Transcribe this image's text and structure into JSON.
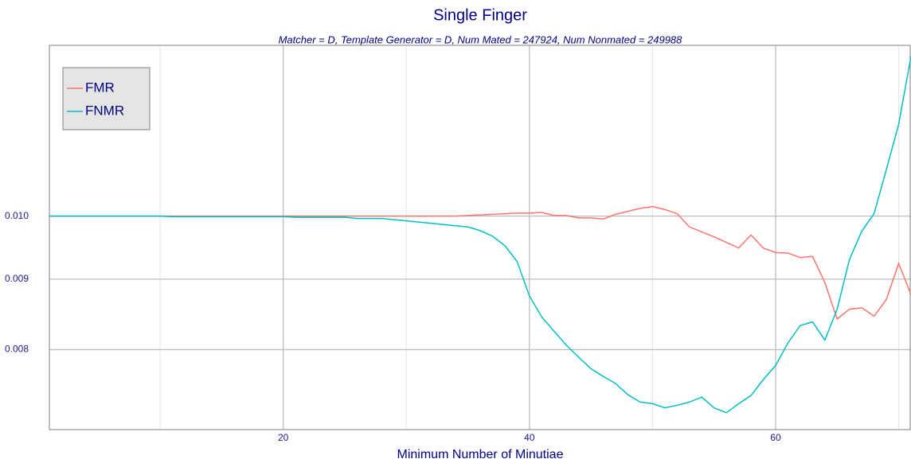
{
  "chart_data": {
    "type": "line",
    "title": "Single Finger",
    "subtitle": "Matcher = D,   Template Generator = D,   Num Mated = 247924,   Num Nonmated = 249988",
    "xlabel": "Minimum Number of Minutiae",
    "x": [
      1,
      2,
      3,
      4,
      5,
      6,
      7,
      8,
      9,
      10,
      11,
      12,
      13,
      14,
      15,
      16,
      17,
      18,
      19,
      20,
      21,
      22,
      23,
      24,
      25,
      26,
      27,
      28,
      29,
      30,
      31,
      32,
      33,
      34,
      35,
      36,
      37,
      38,
      39,
      40,
      41,
      42,
      43,
      44,
      45,
      46,
      47,
      48,
      49,
      50,
      51,
      52,
      53,
      54,
      55,
      56,
      57,
      58,
      59,
      60,
      61,
      62,
      63,
      64,
      65,
      66,
      67,
      68,
      69,
      70,
      71
    ],
    "series": [
      {
        "name": "FMR",
        "color": "#F8766D",
        "values": [
          0.01,
          0.01,
          0.01,
          0.01,
          0.01,
          0.01,
          0.01,
          0.01,
          0.01,
          0.01,
          0.01,
          0.01,
          0.01,
          0.01,
          0.01,
          0.01,
          0.01,
          0.01,
          0.01,
          0.01,
          0.01,
          0.01,
          0.01,
          0.01,
          0.01,
          0.01,
          0.01,
          0.01,
          0.01,
          0.01,
          0.01,
          0.01,
          0.01,
          0.01,
          0.01001,
          0.01002,
          0.01003,
          0.01004,
          0.01005,
          0.01005,
          0.01006,
          0.01001,
          0.01001,
          0.00997,
          0.00997,
          0.00995,
          0.01003,
          0.01008,
          0.01013,
          0.01016,
          0.01011,
          0.01004,
          0.00982,
          0.00974,
          0.00966,
          0.00957,
          0.00948,
          0.00969,
          0.00948,
          0.00941,
          0.0094,
          0.00933,
          0.00935,
          0.00895,
          0.00842,
          0.00856,
          0.00858,
          0.00846,
          0.0087,
          0.00924,
          0.00877
        ]
      },
      {
        "name": "FNMR",
        "color": "#00BFC4",
        "values": [
          0.01,
          0.01,
          0.01,
          0.01,
          0.01,
          0.01,
          0.01,
          0.01,
          0.01,
          0.01,
          0.00999,
          0.00999,
          0.00999,
          0.00999,
          0.00999,
          0.00999,
          0.00999,
          0.00999,
          0.00999,
          0.00999,
          0.00998,
          0.00998,
          0.00998,
          0.00998,
          0.00998,
          0.00996,
          0.00996,
          0.00996,
          0.00994,
          0.00992,
          0.0099,
          0.00988,
          0.00986,
          0.00984,
          0.00982,
          0.00976,
          0.00967,
          0.00952,
          0.00927,
          0.00875,
          0.00845,
          0.00825,
          0.00806,
          0.0079,
          0.00775,
          0.00765,
          0.00756,
          0.00742,
          0.00733,
          0.00731,
          0.00726,
          0.00729,
          0.00733,
          0.00739,
          0.00726,
          0.0072,
          0.00731,
          0.00741,
          0.00761,
          0.00779,
          0.00809,
          0.00833,
          0.00838,
          0.00813,
          0.00856,
          0.0093,
          0.00975,
          0.01004,
          0.01081,
          0.01166,
          0.01306
        ]
      }
    ],
    "xlim": [
      1,
      71
    ],
    "xticks": [
      20,
      40,
      60
    ],
    "xminorticks": [
      10,
      30,
      50,
      70
    ],
    "ylim": [
      0.007,
      0.0133
    ],
    "yticks": [
      0.008,
      0.009,
      {
        "value": 0.01,
        "label": "0.010"
      }
    ],
    "ylog": true,
    "grid": true,
    "legend": "top-left"
  }
}
